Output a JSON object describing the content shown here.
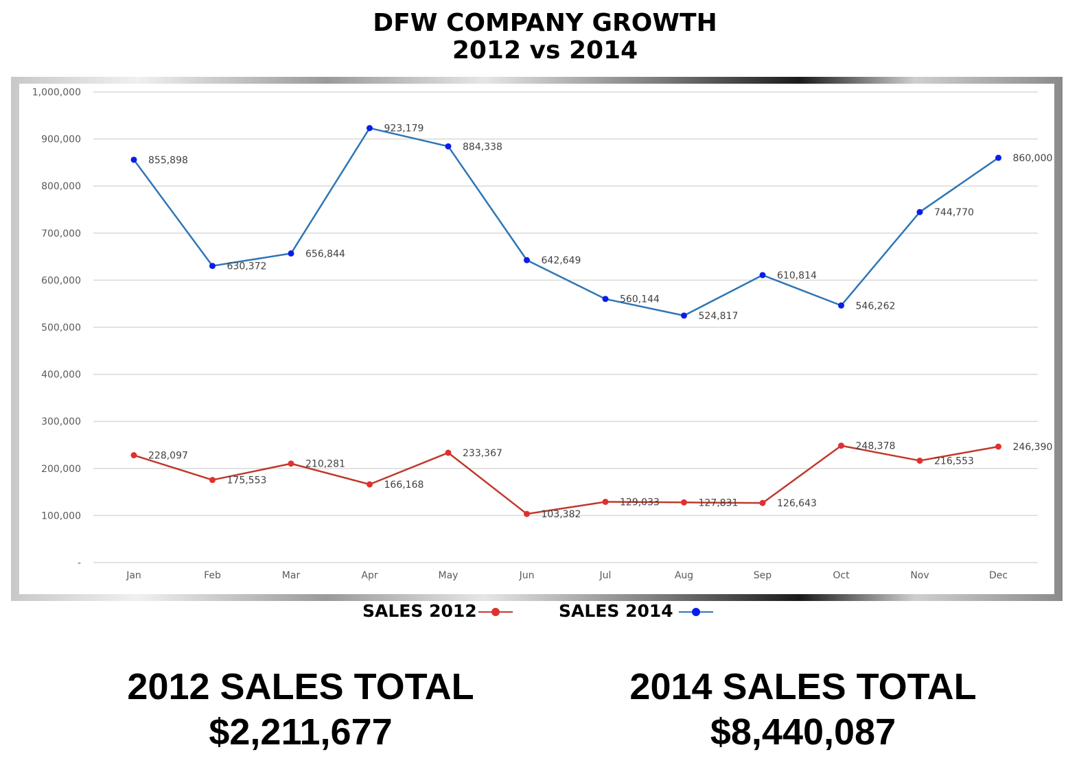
{
  "header": {
    "title_line1": "DFW COMPANY GROWTH",
    "title_line2": "2012 vs 2014"
  },
  "chart_data": {
    "type": "line",
    "categories": [
      "Jan",
      "Feb",
      "Mar",
      "Apr",
      "May",
      "Jun",
      "Jul",
      "Aug",
      "Sep",
      "Oct",
      "Nov",
      "Dec"
    ],
    "series": [
      {
        "name": "SALES 2012",
        "color": "#c0392b",
        "marker_color": "#e03030",
        "values": [
          228097,
          175553,
          210281,
          166168,
          233367,
          103382,
          129033,
          127831,
          126643,
          248378,
          216553,
          246390
        ],
        "labels": [
          "228,097",
          "175,553",
          "210,281",
          "166,168",
          "233,367",
          "103,382",
          "129,033",
          "127,831",
          "126,643",
          "248,378",
          "216,553",
          "246,390"
        ]
      },
      {
        "name": "SALES 2014",
        "color": "#2e75b6",
        "marker_color": "#0a1eeb",
        "values": [
          855898,
          630372,
          656844,
          923179,
          884338,
          642649,
          560144,
          524817,
          610814,
          546262,
          744770,
          860000
        ],
        "labels": [
          "855,898",
          "630,372",
          "656,844",
          "923,179",
          "884,338",
          "642,649",
          "560,144",
          "524,817",
          "610,814",
          "546,262",
          "744,770",
          "860,000"
        ]
      }
    ],
    "ylim": [
      0,
      1000000
    ],
    "yticks": [
      0,
      100000,
      200000,
      300000,
      400000,
      500000,
      600000,
      700000,
      800000,
      900000,
      1000000
    ],
    "ytick_labels": [
      "-",
      "100,000",
      "200,000",
      "300,000",
      "400,000",
      "500,000",
      "600,000",
      "700,000",
      "800,000",
      "900,000",
      "1,000,000"
    ],
    "grid": true,
    "legend": "bottom"
  },
  "legend": {
    "label_2012": "SALES 2012",
    "label_2014": "SALES 2014"
  },
  "totals": {
    "label_2012": "2012 SALES TOTAL",
    "value_2012": "$2,211,677",
    "label_2014": "2014 SALES TOTAL",
    "value_2014": "$8,440,087"
  }
}
